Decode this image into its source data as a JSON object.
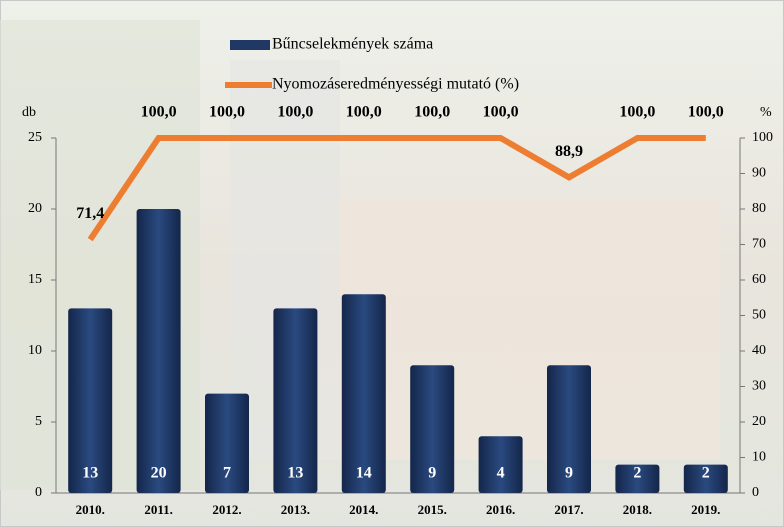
{
  "chart_data": {
    "type": "bar",
    "categories": [
      "2010.",
      "2011.",
      "2012.",
      "2013.",
      "2014.",
      "2015.",
      "2016.",
      "2017.",
      "2018.",
      "2019."
    ],
    "series": [
      {
        "name": "Bűncselekmények száma",
        "type": "bar",
        "color": "#1f3864",
        "values": [
          13,
          20,
          7,
          13,
          14,
          9,
          4,
          9,
          2,
          2
        ]
      },
      {
        "name": "Nyomozáseredményességi mutató (%)",
        "type": "line",
        "axis": "y2",
        "color": "#ed7d31",
        "values": [
          71.4,
          100,
          100,
          100,
          100,
          100,
          100,
          88.9,
          100,
          100
        ],
        "value_labels": [
          "71,4",
          "100,0",
          "100,0",
          "100,0",
          "100,0",
          "100,0",
          "100,0",
          "88,9",
          "100,0",
          "100,0"
        ]
      }
    ],
    "y_label": "db",
    "y2_label": "%",
    "ylim": [
      0,
      25
    ],
    "yticks": [
      0,
      5,
      10,
      15,
      20,
      25
    ],
    "y2lim": [
      0,
      100
    ],
    "y2ticks": [
      0,
      10,
      20,
      30,
      40,
      50,
      60,
      70,
      80,
      90,
      100
    ]
  }
}
